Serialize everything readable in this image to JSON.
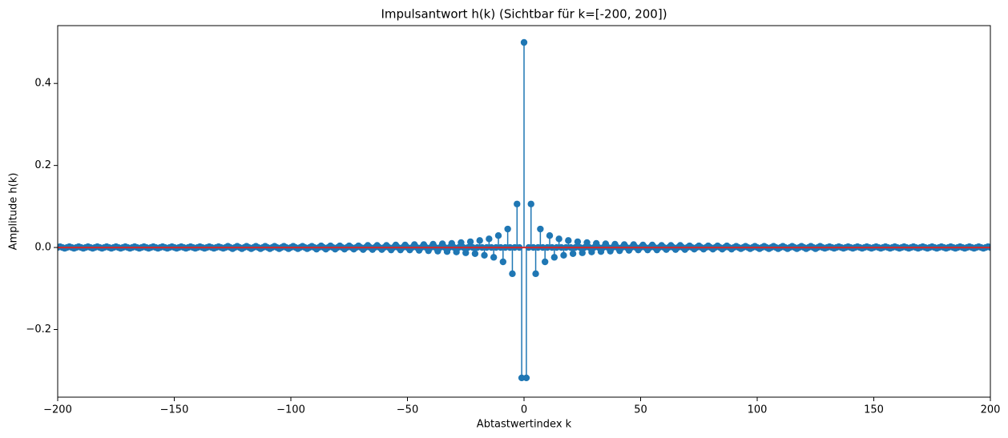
{
  "chart_data": {
    "type": "stem",
    "title": "Impulsantwort h(k) (Sichtbar für k=[-200, 200])",
    "x_label": "Abtastwertindex k",
    "y_label": "Amplitude h(k)",
    "color": "#1f77b4",
    "baseline_color": "#d62728",
    "xlim": [
      -200,
      200
    ],
    "ylim": [
      -0.365,
      0.541
    ],
    "xticks": [
      {
        "value": -200,
        "label": "−200"
      },
      {
        "value": -150,
        "label": "−150"
      },
      {
        "value": -100,
        "label": "−100"
      },
      {
        "value": -50,
        "label": "−50"
      },
      0,
      50,
      100,
      150,
      200
    ],
    "yticks": [
      {
        "value": -0.2,
        "label": "−0.2"
      },
      {
        "value": 0,
        "label": "0.0"
      },
      0.2,
      0.4
    ],
    "x": [
      -200,
      -199,
      -198,
      -197,
      -196,
      -195,
      -194,
      -193,
      -192,
      -191,
      -190,
      -189,
      -188,
      -187,
      -186,
      -185,
      -184,
      -183,
      -182,
      -181,
      -180,
      -179,
      -178,
      -177,
      -176,
      -175,
      -174,
      -173,
      -172,
      -171,
      -170,
      -169,
      -168,
      -167,
      -166,
      -165,
      -164,
      -163,
      -162,
      -161,
      -160,
      -159,
      -158,
      -157,
      -156,
      -155,
      -154,
      -153,
      -152,
      -151,
      -150,
      -149,
      -148,
      -147,
      -146,
      -145,
      -144,
      -143,
      -142,
      -141,
      -140,
      -139,
      -138,
      -137,
      -136,
      -135,
      -134,
      -133,
      -132,
      -131,
      -130,
      -129,
      -128,
      -127,
      -126,
      -125,
      -124,
      -123,
      -122,
      -121,
      -120,
      -119,
      -118,
      -117,
      -116,
      -115,
      -114,
      -113,
      -112,
      -111,
      -110,
      -109,
      -108,
      -107,
      -106,
      -105,
      -104,
      -103,
      -102,
      -101,
      -100,
      -99,
      -98,
      -97,
      -96,
      -95,
      -94,
      -93,
      -92,
      -91,
      -90,
      -89,
      -88,
      -87,
      -86,
      -85,
      -84,
      -83,
      -82,
      -81,
      -80,
      -79,
      -78,
      -77,
      -76,
      -75,
      -74,
      -73,
      -72,
      -71,
      -70,
      -69,
      -68,
      -67,
      -66,
      -65,
      -64,
      -63,
      -62,
      -61,
      -60,
      -59,
      -58,
      -57,
      -56,
      -55,
      -54,
      -53,
      -52,
      -51,
      -50,
      -49,
      -48,
      -47,
      -46,
      -45,
      -44,
      -43,
      -42,
      -41,
      -40,
      -39,
      -38,
      -37,
      -36,
      -35,
      -34,
      -33,
      -32,
      -31,
      -30,
      -29,
      -28,
      -27,
      -26,
      -25,
      -24,
      -23,
      -22,
      -21,
      -20,
      -19,
      -18,
      -17,
      -16,
      -15,
      -14,
      -13,
      -12,
      -11,
      -10,
      -9,
      -8,
      -7,
      -6,
      -5,
      -4,
      -3,
      -2,
      -1,
      0,
      1,
      2,
      3,
      4,
      5,
      6,
      7,
      8,
      9,
      10,
      11,
      12,
      13,
      14,
      15,
      16,
      17,
      18,
      19,
      20,
      21,
      22,
      23,
      24,
      25,
      26,
      27,
      28,
      29,
      30,
      31,
      32,
      33,
      34,
      35,
      36,
      37,
      38,
      39,
      40,
      41,
      42,
      43,
      44,
      45,
      46,
      47,
      48,
      49,
      50,
      51,
      52,
      53,
      54,
      55,
      56,
      57,
      58,
      59,
      60,
      61,
      62,
      63,
      64,
      65,
      66,
      67,
      68,
      69,
      70,
      71,
      72,
      73,
      74,
      75,
      76,
      77,
      78,
      79,
      80,
      81,
      82,
      83,
      84,
      85,
      86,
      87,
      88,
      89,
      90,
      91,
      92,
      93,
      94,
      95,
      96,
      97,
      98,
      99,
      100,
      101,
      102,
      103,
      104,
      105,
      106,
      107,
      108,
      109,
      110,
      111,
      112,
      113,
      114,
      115,
      116,
      117,
      118,
      119,
      120,
      121,
      122,
      123,
      124,
      125,
      126,
      127,
      128,
      129,
      130,
      131,
      132,
      133,
      134,
      135,
      136,
      137,
      138,
      139,
      140,
      141,
      142,
      143,
      144,
      145,
      146,
      147,
      148,
      149,
      150,
      151,
      152,
      153,
      154,
      155,
      156,
      157,
      158,
      159,
      160,
      161,
      162,
      163,
      164,
      165,
      166,
      167,
      168,
      169,
      170,
      171,
      172,
      173,
      174,
      175,
      176,
      177,
      178,
      179,
      180,
      181,
      182,
      183,
      184,
      185,
      186,
      187,
      188,
      189,
      190,
      191,
      192,
      193,
      194,
      195,
      196,
      197,
      198,
      199,
      200
    ],
    "values": [
      0,
      0.002,
      0,
      -0.002,
      0,
      0.002,
      0,
      -0.002,
      0,
      0.002,
      0,
      -0.002,
      0,
      0.002,
      0,
      -0.002,
      0,
      0.002,
      0,
      -0.002,
      0,
      0.002,
      0,
      -0.002,
      0,
      0.002,
      0,
      -0.002,
      0,
      0.002,
      0,
      -0.002,
      0,
      0.002,
      0,
      -0.002,
      0,
      0.002,
      0,
      -0.002,
      0,
      0.002,
      0,
      -0.002,
      0,
      0.002,
      0,
      -0.002,
      0,
      0.002,
      0,
      -0.002,
      0,
      0.002,
      0,
      -0.002,
      0,
      0.002,
      0,
      -0.002,
      0,
      0.002,
      0,
      -0.002,
      0,
      0.002,
      0,
      -0.002,
      0,
      0.002,
      0,
      -0.002,
      0,
      0.003,
      0,
      -0.003,
      0,
      0.003,
      0,
      -0.003,
      0,
      0.003,
      0,
      -0.003,
      0,
      0.003,
      0,
      -0.003,
      0,
      0.003,
      0,
      -0.003,
      0,
      0.003,
      0,
      -0.003,
      0,
      0.003,
      0,
      -0.003,
      0,
      0.003,
      0,
      -0.003,
      0,
      0.003,
      0,
      -0.003,
      0,
      0.003,
      0,
      -0.004,
      0,
      0.004,
      0,
      -0.004,
      0,
      0.004,
      0,
      -0.004,
      0,
      0.004,
      0,
      -0.004,
      0,
      0.004,
      0,
      -0.004,
      0,
      0.004,
      0,
      -0.005,
      0,
      0.005,
      0,
      -0.005,
      0,
      0.005,
      0,
      -0.005,
      0,
      0.005,
      0,
      -0.006,
      0,
      0.006,
      0,
      -0.006,
      0,
      0.006,
      0,
      -0.006,
      0,
      0.007,
      0,
      -0.007,
      0,
      0.007,
      0,
      -0.008,
      0,
      0.008,
      0,
      -0.009,
      0,
      0.009,
      0,
      -0.01,
      0,
      0.01,
      0,
      -0.011,
      0,
      0.012,
      0,
      -0.013,
      0,
      0.014,
      0,
      -0.015,
      0,
      0.017,
      0,
      -0.019,
      0,
      0.021,
      0,
      -0.024,
      0,
      0.029,
      0,
      -0.035,
      0,
      0.045,
      0,
      -0.064,
      0,
      0.106,
      0,
      -0.318,
      0.5,
      -0.318,
      0,
      0.106,
      0,
      -0.064,
      0,
      0.045,
      0,
      -0.035,
      0,
      0.029,
      0,
      -0.024,
      0,
      0.021,
      0,
      -0.019,
      0,
      0.017,
      0,
      -0.015,
      0,
      0.014,
      0,
      -0.013,
      0,
      0.012,
      0,
      -0.011,
      0,
      0.01,
      0,
      -0.01,
      0,
      0.009,
      0,
      -0.009,
      0,
      0.008,
      0,
      -0.008,
      0,
      0.007,
      0,
      -0.007,
      0,
      0.007,
      0,
      -0.006,
      0,
      0.006,
      0,
      -0.006,
      0,
      0.006,
      0,
      -0.006,
      0,
      0.005,
      0,
      -0.005,
      0,
      0.005,
      0,
      -0.005,
      0,
      0.005,
      0,
      -0.005,
      0,
      0.004,
      0,
      -0.004,
      0,
      0.004,
      0,
      -0.004,
      0,
      0.004,
      0,
      -0.004,
      0,
      0.004,
      0,
      -0.004,
      0,
      0.004,
      0,
      -0.004,
      0,
      0.003,
      0,
      -0.003,
      0,
      0.003,
      0,
      -0.003,
      0,
      0.003,
      0,
      -0.003,
      0,
      0.003,
      0,
      -0.003,
      0,
      0.003,
      0,
      -0.003,
      0,
      0.003,
      0,
      -0.003,
      0,
      0.003,
      0,
      -0.003,
      0,
      0.003,
      0,
      -0.003,
      0,
      0.003,
      0,
      -0.003,
      0,
      0.003,
      0,
      -0.002,
      0,
      0.002,
      0,
      -0.002,
      0,
      0.002,
      0,
      -0.002,
      0,
      0.002,
      0,
      -0.002,
      0,
      0.002,
      0,
      -0.002,
      0,
      0.002,
      0,
      -0.002,
      0,
      0.002,
      0,
      -0.002,
      0,
      0.002,
      0,
      -0.002,
      0,
      0.002,
      0,
      -0.002,
      0,
      0.002,
      0,
      -0.002,
      0,
      0.002,
      0,
      -0.002,
      0,
      0.002,
      0,
      -0.002,
      0,
      0.002,
      0,
      -0.002,
      0,
      0.002,
      0,
      -0.002,
      0,
      0.002,
      0,
      -0.002,
      0,
      0.002,
      0,
      -0.002,
      0,
      0.002,
      0,
      -0.002,
      0,
      0.002,
      0,
      -0.002,
      0,
      0.002,
      0
    ]
  }
}
